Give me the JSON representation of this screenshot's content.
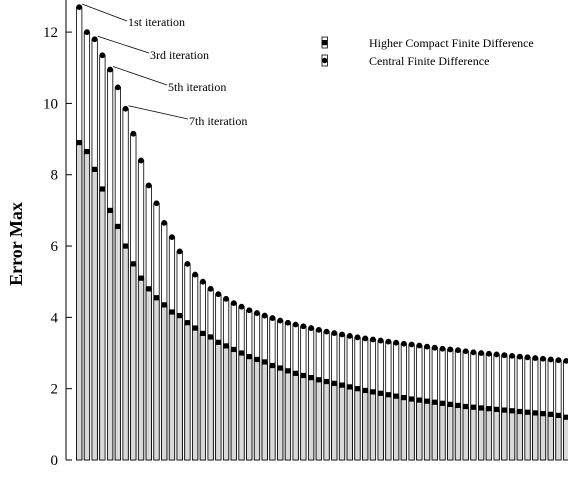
{
  "chart_data": {
    "type": "bar",
    "title": "",
    "xlabel": "",
    "ylabel": "Error Max",
    "ylim": [
      0,
      12.9
    ],
    "yticks": [
      0,
      2,
      4,
      6,
      8,
      10,
      12
    ],
    "grid": false,
    "legend_position": "top-right",
    "colors": {
      "central_bar": "#ffffff",
      "compact_bar": "#d9d9d9",
      "outline": "#000000",
      "marker": "#000000"
    },
    "x": [
      1,
      2,
      3,
      4,
      5,
      6,
      7,
      8,
      9,
      10,
      11,
      12,
      13,
      14,
      15,
      16,
      17,
      18,
      19,
      20,
      21,
      22,
      23,
      24,
      25,
      26,
      27,
      28,
      29,
      30,
      31,
      32,
      33,
      34,
      35,
      36,
      37,
      38,
      39,
      40,
      41,
      42,
      43,
      44,
      45,
      46,
      47,
      48,
      49,
      50,
      51,
      52,
      53,
      54,
      55,
      56,
      57,
      58,
      59,
      60,
      61,
      62,
      63,
      64
    ],
    "series": [
      {
        "name": "Higher Compact Finite Difference",
        "marker": "square",
        "values": [
          8.9,
          8.65,
          8.15,
          7.6,
          7.0,
          6.55,
          6.0,
          5.5,
          5.1,
          4.8,
          4.55,
          4.35,
          4.15,
          4.05,
          3.85,
          3.7,
          3.55,
          3.45,
          3.3,
          3.2,
          3.1,
          3.0,
          2.9,
          2.82,
          2.75,
          2.65,
          2.58,
          2.5,
          2.43,
          2.37,
          2.31,
          2.25,
          2.2,
          2.15,
          2.1,
          2.05,
          2.0,
          1.95,
          1.91,
          1.87,
          1.83,
          1.79,
          1.75,
          1.71,
          1.68,
          1.65,
          1.62,
          1.59,
          1.56,
          1.53,
          1.5,
          1.48,
          1.46,
          1.44,
          1.42,
          1.4,
          1.38,
          1.36,
          1.34,
          1.32,
          1.3,
          1.28,
          1.25,
          1.2
        ]
      },
      {
        "name": "Central Finite Difference",
        "marker": "circle",
        "values": [
          12.7,
          12.0,
          11.8,
          11.35,
          10.95,
          10.45,
          9.85,
          9.15,
          8.4,
          7.7,
          7.2,
          6.65,
          6.25,
          5.85,
          5.5,
          5.2,
          5.0,
          4.8,
          4.65,
          4.52,
          4.4,
          4.3,
          4.2,
          4.12,
          4.05,
          3.98,
          3.91,
          3.85,
          3.8,
          3.75,
          3.7,
          3.65,
          3.6,
          3.56,
          3.52,
          3.48,
          3.44,
          3.41,
          3.38,
          3.35,
          3.32,
          3.29,
          3.26,
          3.24,
          3.21,
          3.18,
          3.15,
          3.12,
          3.1,
          3.08,
          3.05,
          3.02,
          3.0,
          2.98,
          2.96,
          2.94,
          2.92,
          2.9,
          2.88,
          2.86,
          2.84,
          2.82,
          2.8,
          2.78
        ]
      }
    ],
    "annotations": [
      {
        "text": "1st iteration",
        "target_index": 0
      },
      {
        "text": "3rd iteration",
        "target_index": 2
      },
      {
        "text": "5th iteration",
        "target_index": 4
      },
      {
        "text": "7th iteration",
        "target_index": 6
      }
    ]
  }
}
